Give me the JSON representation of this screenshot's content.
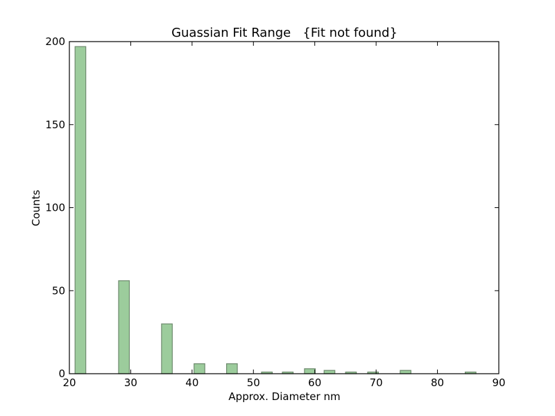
{
  "chart_data": {
    "type": "bar",
    "title": "Guassian Fit Range   {Fit not found}",
    "xlabel": "Approx. Diameter nm",
    "ylabel": "Counts",
    "xlim": [
      20,
      90
    ],
    "ylim": [
      0,
      200
    ],
    "xticks": [
      20,
      30,
      40,
      50,
      60,
      70,
      80,
      90
    ],
    "yticks": [
      0,
      50,
      100,
      150,
      200
    ],
    "bar_width": 1.75,
    "x": [
      21.8,
      28.9,
      35.9,
      41.2,
      46.5,
      52.2,
      55.6,
      59.2,
      62.4,
      65.9,
      69.5,
      74.8,
      85.4
    ],
    "values": [
      197,
      56,
      30,
      6,
      6,
      1,
      1,
      3,
      2,
      1,
      1,
      2,
      1
    ],
    "grid": false,
    "bar_color": "#9ccc9c",
    "edge_color": "#6e8a6e"
  }
}
